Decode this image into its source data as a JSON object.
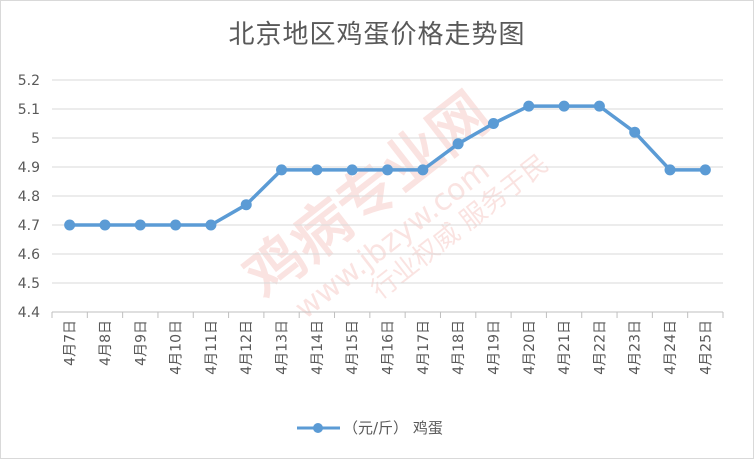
{
  "chart_data": {
    "type": "line",
    "title": "北京地区鸡蛋价格走势图",
    "xlabel": "",
    "ylabel": "",
    "categories": [
      "4月7日",
      "4月8日",
      "4月9日",
      "4月10日",
      "4月11日",
      "4月12日",
      "4月13日",
      "4月14日",
      "4月15日",
      "4月16日",
      "4月17日",
      "4月18日",
      "4月19日",
      "4月20日",
      "4月21日",
      "4月22日",
      "4月23日",
      "4月24日",
      "4月25日"
    ],
    "series": [
      {
        "name": "（元/斤） 鸡蛋",
        "color": "#5b9bd5",
        "values": [
          4.7,
          4.7,
          4.7,
          4.7,
          4.7,
          4.77,
          4.89,
          4.89,
          4.89,
          4.89,
          4.89,
          4.98,
          5.05,
          5.11,
          5.11,
          5.11,
          5.02,
          4.89,
          4.89
        ]
      }
    ],
    "ylim": [
      4.4,
      5.2
    ],
    "yticks": [
      4.4,
      4.5,
      4.6,
      4.7,
      4.8,
      4.9,
      5.0,
      5.1,
      5.2
    ],
    "ytick_labels": [
      "4.4",
      "4.5",
      "4.6",
      "4.7",
      "4.8",
      "4.9",
      "5",
      "5.1",
      "5.2"
    ],
    "grid": true,
    "legend_position": "bottom"
  },
  "watermark": {
    "main": "鸡病专业网",
    "url": "www.jbzyw.com",
    "sub": "行业权威 服务于民"
  }
}
